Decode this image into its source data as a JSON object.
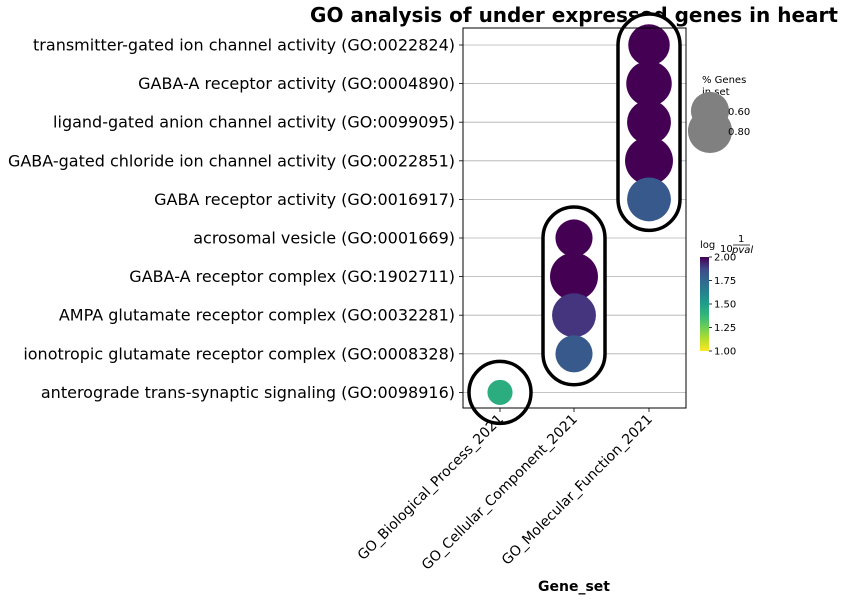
{
  "chart_data": {
    "type": "scatter",
    "title": "GO analysis of under expressed genes in heart",
    "xlabel": "Gene_set",
    "x_categories": [
      "GO_Biological_Process_2021",
      "GO_Cellular_Component_2021",
      "GO_Molecular_Function_2021"
    ],
    "y_categories": [
      "transmitter-gated ion channel activity (GO:0022824)",
      "GABA-A receptor activity (GO:0004890)",
      "ligand-gated anion channel activity (GO:0099095)",
      "GABA-gated chloride ion channel activity (GO:0022851)",
      "GABA receptor activity (GO:0016917)",
      "acrosomal vesicle (GO:0001669)",
      "GABA-A receptor complex (GO:1902711)",
      "AMPA glutamate receptor complex (GO:0032281)",
      "ionotropic glutamate receptor complex (GO:0008328)",
      "anterograde trans-synaptic signaling (GO:0098916)"
    ],
    "points": [
      {
        "x": "GO_Molecular_Function_2021",
        "y": "transmitter-gated ion channel activity (GO:0022824)",
        "pct_genes": 0.6,
        "neglog10p": 2.0
      },
      {
        "x": "GO_Molecular_Function_2021",
        "y": "GABA-A receptor activity (GO:0004890)",
        "pct_genes": 0.72,
        "neglog10p": 2.0
      },
      {
        "x": "GO_Molecular_Function_2021",
        "y": "ligand-gated anion channel activity (GO:0099095)",
        "pct_genes": 0.67,
        "neglog10p": 2.0
      },
      {
        "x": "GO_Molecular_Function_2021",
        "y": "GABA-gated chloride ion channel activity (GO:0022851)",
        "pct_genes": 0.8,
        "neglog10p": 2.0
      },
      {
        "x": "GO_Molecular_Function_2021",
        "y": "GABA receptor activity (GO:0016917)",
        "pct_genes": 0.67,
        "neglog10p": 1.72
      },
      {
        "x": "GO_Cellular_Component_2021",
        "y": "acrosomal vesicle (GO:0001669)",
        "pct_genes": 0.48,
        "neglog10p": 2.0
      },
      {
        "x": "GO_Cellular_Component_2021",
        "y": "GABA-A receptor complex (GO:1902711)",
        "pct_genes": 0.8,
        "neglog10p": 2.0
      },
      {
        "x": "GO_Cellular_Component_2021",
        "y": "AMPA glutamate receptor complex (GO:0032281)",
        "pct_genes": 0.67,
        "neglog10p": 1.85
      },
      {
        "x": "GO_Cellular_Component_2021",
        "y": "ionotropic glutamate receptor complex (GO:0008328)",
        "pct_genes": 0.48,
        "neglog10p": 1.72
      },
      {
        "x": "GO_Biological_Process_2021",
        "y": "anterograde trans-synaptic signaling (GO:0098916)",
        "pct_genes": 0.22,
        "neglog10p": 1.38
      }
    ],
    "outline_groups": [
      {
        "x": "GO_Biological_Process_2021",
        "from": "anterograde trans-synaptic signaling (GO:0098916)",
        "to": "anterograde trans-synaptic signaling (GO:0098916)"
      },
      {
        "x": "GO_Cellular_Component_2021",
        "from": "acrosomal vesicle (GO:0001669)",
        "to": "ionotropic glutamate receptor complex (GO:0008328)"
      },
      {
        "x": "GO_Molecular_Function_2021",
        "from": "transmitter-gated ion channel activity (GO:0022824)",
        "to": "GABA receptor activity (GO:0016917)"
      }
    ],
    "size_legend": {
      "title": "% Genes\nin set",
      "entries": [
        {
          "label": "0.60",
          "value": 0.6
        },
        {
          "label": "0.80",
          "value": 0.8
        }
      ]
    },
    "colorbar": {
      "label": "log10 1/pval",
      "label_main": "log",
      "label_sub": "10",
      "label_num": "1",
      "label_den": "pval",
      "range": [
        1.0,
        2.0
      ],
      "ticks": [
        {
          "label": "1.00",
          "value": 1.0
        },
        {
          "label": "1.25",
          "value": 1.25
        },
        {
          "label": "1.50",
          "value": 1.5
        },
        {
          "label": "1.75",
          "value": 1.75
        },
        {
          "label": "2.00",
          "value": 2.0
        }
      ],
      "colormap": "viridis_r"
    },
    "grid": "horizontal"
  }
}
